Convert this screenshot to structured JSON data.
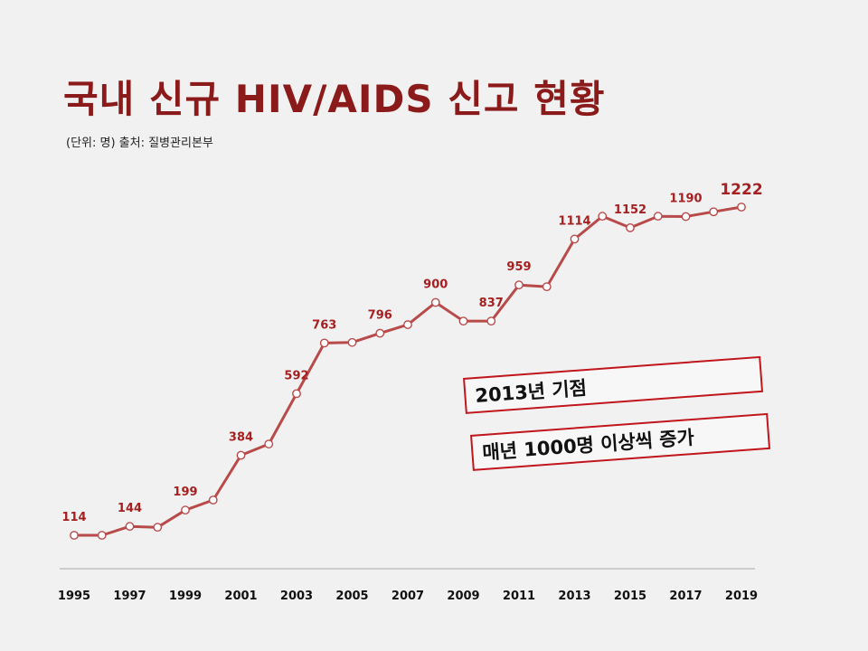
{
  "header": {
    "title": "국내 신규 HIV/AIDS 신고 현황",
    "subtitle": "(단위: 명) 출처: 질병관리본부"
  },
  "callouts": [
    "2013년 기점",
    "매년 1000명 이상씩 증가"
  ],
  "colors": {
    "line": "#b84a4a",
    "label": "#a52020",
    "title": "#8b1a1a",
    "callout_border": "#c0161c"
  },
  "chart_data": {
    "type": "line",
    "x": [
      1995,
      1996,
      1997,
      1998,
      1999,
      2000,
      2001,
      2002,
      2003,
      2004,
      2005,
      2006,
      2007,
      2008,
      2009,
      2010,
      2011,
      2012,
      2013,
      2014,
      2015,
      2016,
      2017,
      2018,
      2019
    ],
    "values": [
      114,
      114,
      144,
      141,
      199,
      233,
      384,
      422,
      592,
      763,
      765,
      796,
      825,
      900,
      837,
      837,
      959,
      953,
      1114,
      1191,
      1152,
      1191,
      1190,
      1206,
      1222
    ],
    "data_labels": [
      {
        "x": 1995,
        "text": "114"
      },
      {
        "x": 1997,
        "text": "144"
      },
      {
        "x": 1999,
        "text": "199"
      },
      {
        "x": 2001,
        "text": "384"
      },
      {
        "x": 2003,
        "text": "592"
      },
      {
        "x": 2004,
        "text": "763"
      },
      {
        "x": 2006,
        "text": "796"
      },
      {
        "x": 2008,
        "text": "900"
      },
      {
        "x": 2010,
        "text": "837"
      },
      {
        "x": 2011,
        "text": "959"
      },
      {
        "x": 2013,
        "text": "1114"
      },
      {
        "x": 2015,
        "text": "1152"
      },
      {
        "x": 2017,
        "text": "1190"
      },
      {
        "x": 2019,
        "text": "1222"
      }
    ],
    "x_ticks": [
      "1995",
      "1997",
      "1999",
      "2001",
      "2003",
      "2005",
      "2007",
      "2009",
      "2011",
      "2013",
      "2015",
      "2017",
      "2019"
    ],
    "ylim": [
      0,
      1400
    ],
    "grid": false,
    "legend": "none"
  }
}
